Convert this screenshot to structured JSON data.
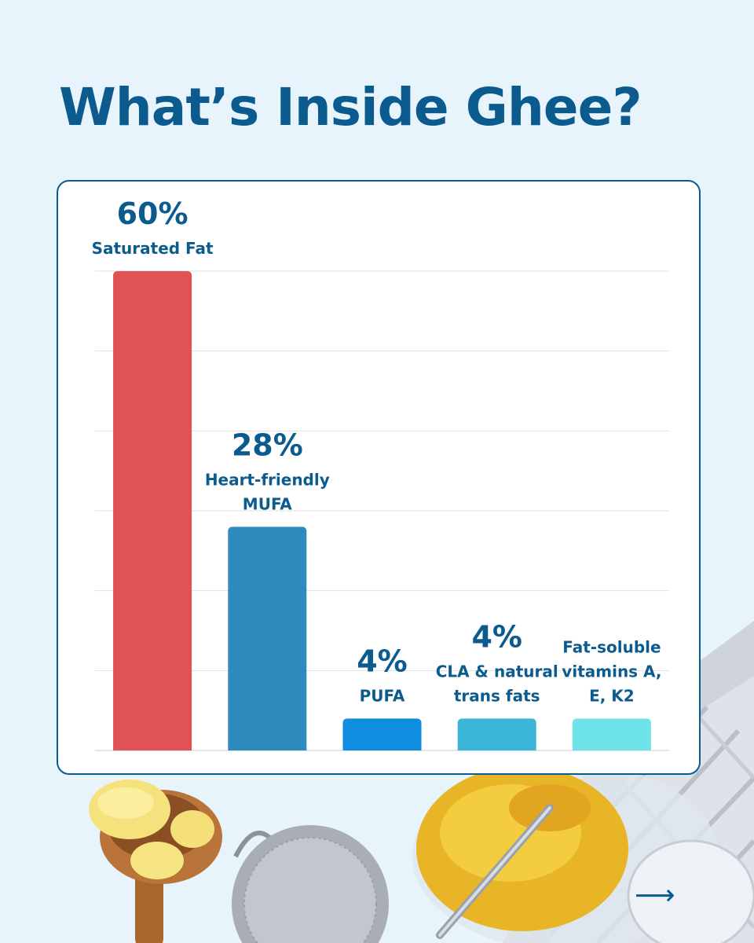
{
  "title": "What’s Inside Ghee?",
  "chart_data": {
    "type": "bar",
    "categories": [
      "Saturated Fat",
      "Heart-friendly MUFA",
      "PUFA",
      "CLA & natural trans fats",
      "Fat-soluble vitamins A, E, K2"
    ],
    "values": [
      60,
      28,
      4,
      4,
      4
    ],
    "value_labels": [
      "60%",
      "28%",
      "4%",
      "4%",
      ""
    ],
    "category_label_lines": [
      [
        "Saturated Fat"
      ],
      [
        "Heart-friendly",
        "MUFA"
      ],
      [
        "PUFA"
      ],
      [
        "CLA & natural",
        "trans fats"
      ],
      [
        "Fat-soluble",
        "vitamins A,",
        "E, K2"
      ]
    ],
    "colors": [
      "#e05253",
      "#2e8bbd",
      "#0f8de0",
      "#3bb6d9",
      "#6fe3ea"
    ],
    "ylim": [
      0,
      60
    ],
    "grid": true,
    "title": "",
    "xlabel": "",
    "ylabel": ""
  },
  "nav": {
    "next_icon": "arrow-right-icon"
  }
}
